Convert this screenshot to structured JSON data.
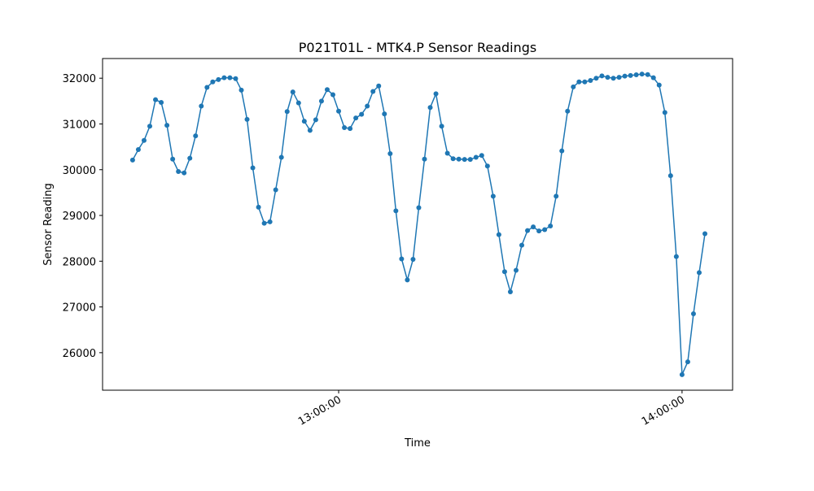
{
  "chart_data": {
    "type": "line",
    "title": "P021T01L - MTK4.P Sensor Readings",
    "x_label": "Time",
    "y_label": "Sensor Reading",
    "x": [
      "12:24:00",
      "12:25:00",
      "12:26:00",
      "12:27:00",
      "12:28:00",
      "12:29:00",
      "12:30:00",
      "12:31:00",
      "12:32:00",
      "12:33:00",
      "12:34:00",
      "12:35:00",
      "12:36:00",
      "12:37:00",
      "12:38:00",
      "12:39:00",
      "12:40:00",
      "12:41:00",
      "12:42:00",
      "12:43:00",
      "12:44:00",
      "12:45:00",
      "12:46:00",
      "12:47:00",
      "12:48:00",
      "12:49:00",
      "12:50:00",
      "12:51:00",
      "12:52:00",
      "12:53:00",
      "12:54:00",
      "12:55:00",
      "12:56:00",
      "12:57:00",
      "12:58:00",
      "12:59:00",
      "13:00:00",
      "13:01:00",
      "13:02:00",
      "13:03:00",
      "13:04:00",
      "13:05:00",
      "13:06:00",
      "13:07:00",
      "13:08:00",
      "13:09:00",
      "13:10:00",
      "13:11:00",
      "13:12:00",
      "13:13:00",
      "13:14:00",
      "13:15:00",
      "13:16:00",
      "13:17:00",
      "13:18:00",
      "13:19:00",
      "13:20:00",
      "13:21:00",
      "13:22:00",
      "13:23:00",
      "13:24:00",
      "13:25:00",
      "13:26:00",
      "13:27:00",
      "13:28:00",
      "13:29:00",
      "13:30:00",
      "13:31:00",
      "13:32:00",
      "13:33:00",
      "13:34:00",
      "13:35:00",
      "13:36:00",
      "13:37:00",
      "13:38:00",
      "13:39:00",
      "13:40:00",
      "13:41:00",
      "13:42:00",
      "13:43:00",
      "13:44:00",
      "13:45:00",
      "13:46:00",
      "13:47:00",
      "13:48:00",
      "13:49:00",
      "13:50:00",
      "13:51:00",
      "13:52:00",
      "13:53:00",
      "13:54:00",
      "13:55:00",
      "13:56:00",
      "13:57:00",
      "13:58:00",
      "13:59:00",
      "14:00:00",
      "14:01:00",
      "14:02:00",
      "14:03:00",
      "14:04:00"
    ],
    "series": [
      {
        "name": "MTK4.P",
        "color": "#1f77b4",
        "values": [
          30210,
          30440,
          30640,
          30950,
          31530,
          31470,
          30970,
          30230,
          29960,
          29930,
          30250,
          30740,
          31390,
          31800,
          31920,
          31970,
          32010,
          32010,
          31990,
          31740,
          31100,
          30040,
          29180,
          28830,
          28860,
          29560,
          30270,
          31270,
          31700,
          31460,
          31060,
          30860,
          31090,
          31500,
          31750,
          31640,
          31280,
          30920,
          30900,
          31130,
          31210,
          31390,
          31710,
          31830,
          31220,
          30350,
          29100,
          28050,
          27590,
          28040,
          29170,
          30230,
          31360,
          31660,
          30950,
          30360,
          30240,
          30230,
          30225,
          30225,
          30270,
          30310,
          30080,
          29420,
          28580,
          27770,
          27330,
          27800,
          28350,
          28670,
          28750,
          28660,
          28690,
          28770,
          29420,
          30410,
          31280,
          31810,
          31920,
          31920,
          31950,
          32000,
          32050,
          32020,
          32000,
          32020,
          32045,
          32060,
          32075,
          32090,
          32080,
          32010,
          31850,
          31250,
          29870,
          28100,
          25520,
          25800,
          26850,
          27750,
          28600
        ]
      }
    ],
    "xlim": [
      "12:18:45",
      "14:08:50"
    ],
    "xticks": [
      "13:00:00",
      "14:00:00"
    ],
    "ylim": [
      25180,
      32430
    ],
    "yticks": [
      26000,
      27000,
      28000,
      29000,
      30000,
      31000,
      32000
    ]
  }
}
